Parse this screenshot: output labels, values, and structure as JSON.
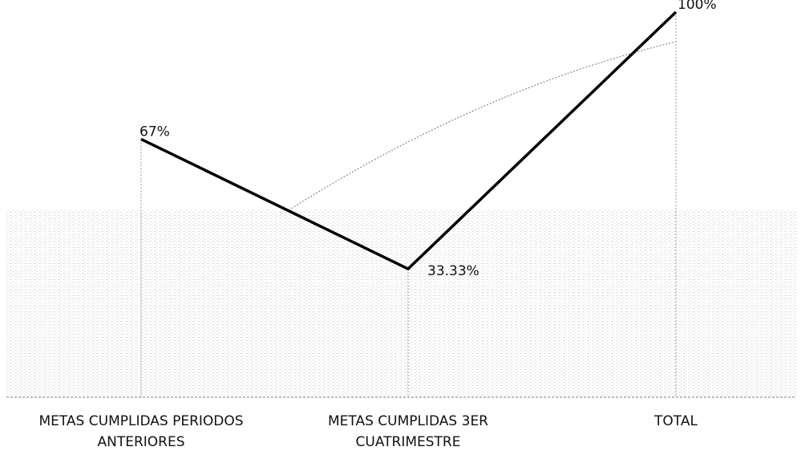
{
  "chart_data": {
    "type": "line",
    "categories": [
      [
        "METAS CUMPLIDAS PERIODOS",
        "ANTERIORES"
      ],
      [
        "METAS CUMPLIDAS 3ER",
        "CUATRIMESTRE"
      ],
      [
        "TOTAL"
      ]
    ],
    "series": [
      {
        "values": [
          67,
          33.33,
          100
        ],
        "labels": [
          "67%",
          "33.33%",
          "100%"
        ],
        "color": "#000000"
      }
    ],
    "trendline": {
      "color": "#8a8a8a",
      "style": "dotted"
    },
    "y_unit": "%",
    "ylim": [
      0,
      100
    ],
    "grid": false,
    "background": "#ffffff"
  }
}
